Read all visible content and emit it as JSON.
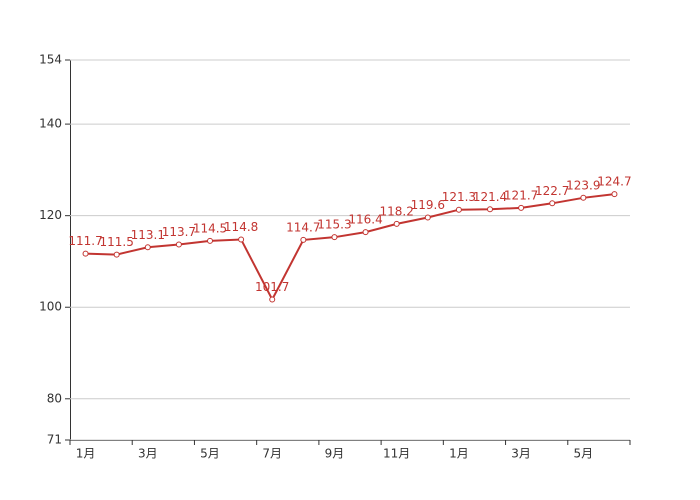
{
  "chart_data": {
    "type": "line",
    "categories": [
      "1月",
      null,
      "3月",
      null,
      "5月",
      null,
      "7月",
      null,
      "9月",
      null,
      "11月",
      null,
      "1月",
      null,
      "3月",
      null,
      "5月",
      null
    ],
    "series": [
      {
        "color": "#c23531",
        "values": [
          111.7,
          111.5,
          113.1,
          113.7,
          114.5,
          114.8,
          101.7,
          114.7,
          115.3,
          116.4,
          118.2,
          119.6,
          121.3,
          121.4,
          121.7,
          122.7,
          123.9,
          124.7
        ]
      }
    ],
    "ylim": [
      71,
      154
    ],
    "yticks": [
      71,
      80,
      100,
      120,
      140,
      154
    ],
    "grid": true
  }
}
